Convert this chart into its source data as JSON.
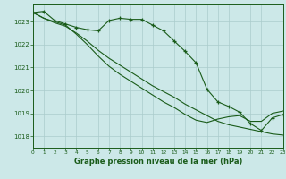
{
  "title": "Graphe pression niveau de la mer (hPa)",
  "background_color": "#cce8e8",
  "grid_color": "#aacccc",
  "line_color": "#1a5c1a",
  "xlim": [
    0,
    23
  ],
  "ylim": [
    1017.5,
    1023.75
  ],
  "yticks": [
    1018,
    1019,
    1020,
    1021,
    1022,
    1023
  ],
  "xticks": [
    0,
    1,
    2,
    3,
    4,
    5,
    6,
    7,
    8,
    9,
    10,
    11,
    12,
    13,
    14,
    15,
    16,
    17,
    18,
    19,
    20,
    21,
    22,
    23
  ],
  "series": [
    {
      "x": [
        0,
        1,
        2,
        3,
        4,
        5,
        6,
        7,
        8,
        9,
        10,
        11,
        12,
        13,
        14,
        15,
        16,
        17,
        18,
        19,
        20,
        21,
        22,
        23
      ],
      "y": [
        1023.4,
        1023.45,
        1023.05,
        1022.9,
        1022.75,
        1022.65,
        1022.6,
        1023.05,
        1023.15,
        1023.1,
        1023.1,
        1022.85,
        1022.6,
        1022.15,
        1021.7,
        1021.2,
        1020.05,
        1019.5,
        1019.3,
        1019.05,
        1018.55,
        1018.25,
        1018.8,
        1018.95
      ],
      "has_markers": true
    },
    {
      "x": [
        0,
        1,
        2,
        3,
        4,
        5,
        6,
        7,
        8,
        9,
        10,
        11,
        12,
        13,
        14,
        15,
        16,
        17,
        18,
        19,
        20,
        21,
        22,
        23
      ],
      "y": [
        1023.4,
        1023.15,
        1022.95,
        1022.8,
        1022.5,
        1022.15,
        1021.75,
        1021.4,
        1021.1,
        1020.8,
        1020.5,
        1020.2,
        1019.95,
        1019.7,
        1019.4,
        1019.15,
        1018.9,
        1018.65,
        1018.5,
        1018.4,
        1018.3,
        1018.2,
        1018.1,
        1018.05
      ],
      "has_markers": false
    },
    {
      "x": [
        0,
        1,
        2,
        3,
        4,
        5,
        6,
        7,
        8,
        9,
        10,
        11,
        12,
        13,
        14,
        15,
        16,
        17,
        18,
        19,
        20,
        21,
        22,
        23
      ],
      "y": [
        1023.4,
        1023.15,
        1023.0,
        1022.85,
        1022.45,
        1022.0,
        1021.5,
        1021.05,
        1020.7,
        1020.4,
        1020.1,
        1019.8,
        1019.5,
        1019.25,
        1018.95,
        1018.7,
        1018.6,
        1018.75,
        1018.85,
        1018.9,
        1018.65,
        1018.65,
        1019.0,
        1019.1
      ],
      "has_markers": false
    }
  ]
}
